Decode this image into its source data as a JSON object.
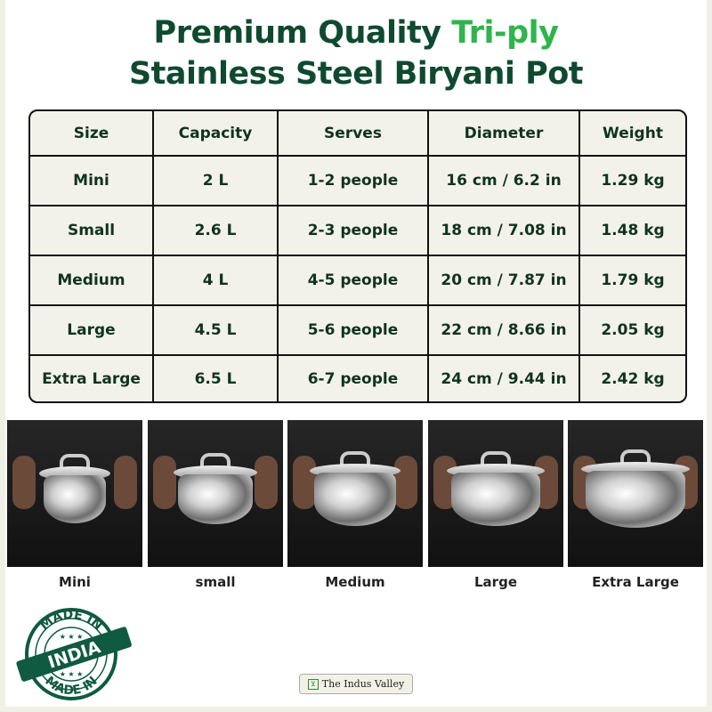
{
  "title": {
    "line1_part1": "Premium Quality ",
    "line1_accent": "Tri-ply",
    "line2": "Stainless Steel Biryani Pot"
  },
  "colors": {
    "title": "#0f4a2f",
    "accent": "#2fb54c",
    "table_bg": "#f3f2ea"
  },
  "table": {
    "headers": [
      "Size",
      "Capacity",
      "Serves",
      "Diameter",
      "Weight"
    ],
    "rows": [
      [
        "Mini",
        "2 L",
        "1-2 people",
        "16 cm / 6.2 in",
        "1.29 kg"
      ],
      [
        "Small",
        "2.6 L",
        "2-3 people",
        "18 cm / 7.08 in",
        "1.48 kg"
      ],
      [
        "Medium",
        "4 L",
        "4-5 people",
        "20 cm / 7.87 in",
        "1.79 kg"
      ],
      [
        "Large",
        "4.5 L",
        "5-6 people",
        "22 cm / 8.66 in",
        "2.05 kg"
      ],
      [
        "Extra Large",
        "6.5 L",
        "6-7 people",
        "24 cm / 9.44 in",
        "2.42 kg"
      ]
    ]
  },
  "photos": [
    {
      "caption": "Mini"
    },
    {
      "caption": "small"
    },
    {
      "caption": "Medium"
    },
    {
      "caption": "Large"
    },
    {
      "caption": "Extra Large"
    }
  ],
  "badge": {
    "top": "MADE IN",
    "center": "INDIA",
    "bottom": "MADE IN"
  },
  "brand": {
    "name": "The Indus Valley"
  }
}
